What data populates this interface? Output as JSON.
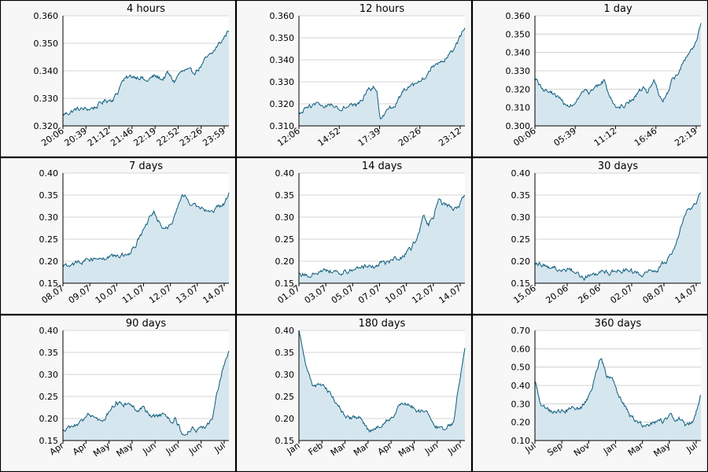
{
  "colors": {
    "line": "#0d5c7d",
    "fill": "#d6e6ee",
    "grid": "#c8c8c8",
    "panel_bg": "#f7f7f7",
    "plot_bg": "#ffffff",
    "border": "#000000"
  },
  "chart_data": [
    {
      "type": "area",
      "title": "4 hours",
      "ylim": [
        0.32,
        0.36
      ],
      "yticks": [
        "0.320",
        "0.330",
        "0.340",
        "0.350",
        "0.360"
      ],
      "xticks": [
        "20:06",
        "20:39",
        "21:12",
        "21:46",
        "22:19",
        "22:52",
        "23:26",
        "23:59"
      ],
      "grid": true,
      "key_points": [
        [
          0,
          0.324
        ],
        [
          0.08,
          0.326
        ],
        [
          0.15,
          0.326
        ],
        [
          0.2,
          0.327
        ],
        [
          0.25,
          0.329
        ],
        [
          0.3,
          0.33
        ],
        [
          0.33,
          0.332
        ],
        [
          0.35,
          0.336
        ],
        [
          0.38,
          0.337
        ],
        [
          0.42,
          0.338
        ],
        [
          0.47,
          0.338
        ],
        [
          0.5,
          0.336
        ],
        [
          0.55,
          0.338
        ],
        [
          0.6,
          0.337
        ],
        [
          0.63,
          0.339
        ],
        [
          0.67,
          0.336
        ],
        [
          0.7,
          0.339
        ],
        [
          0.74,
          0.34
        ],
        [
          0.78,
          0.339
        ],
        [
          0.82,
          0.341
        ],
        [
          0.86,
          0.344
        ],
        [
          0.9,
          0.346
        ],
        [
          0.93,
          0.349
        ],
        [
          0.96,
          0.351
        ],
        [
          1.0,
          0.355
        ]
      ]
    },
    {
      "type": "area",
      "title": "12 hours",
      "ylim": [
        0.31,
        0.36
      ],
      "yticks": [
        "0.310",
        "0.320",
        "0.330",
        "0.340",
        "0.350",
        "0.360"
      ],
      "xticks": [
        "12:06",
        "14:52",
        "17:39",
        "20:26",
        "23:12"
      ],
      "grid": true,
      "key_points": [
        [
          0,
          0.315
        ],
        [
          0.05,
          0.318
        ],
        [
          0.1,
          0.32
        ],
        [
          0.15,
          0.319
        ],
        [
          0.2,
          0.32
        ],
        [
          0.25,
          0.318
        ],
        [
          0.3,
          0.32
        ],
        [
          0.35,
          0.319
        ],
        [
          0.38,
          0.322
        ],
        [
          0.42,
          0.326
        ],
        [
          0.45,
          0.328
        ],
        [
          0.47,
          0.325
        ],
        [
          0.49,
          0.312
        ],
        [
          0.52,
          0.315
        ],
        [
          0.56,
          0.318
        ],
        [
          0.6,
          0.322
        ],
        [
          0.63,
          0.326
        ],
        [
          0.66,
          0.327
        ],
        [
          0.7,
          0.328
        ],
        [
          0.74,
          0.33
        ],
        [
          0.78,
          0.334
        ],
        [
          0.82,
          0.338
        ],
        [
          0.86,
          0.34
        ],
        [
          0.9,
          0.342
        ],
        [
          0.94,
          0.345
        ],
        [
          1.0,
          0.355
        ]
      ]
    },
    {
      "type": "area",
      "title": "1 day",
      "ylim": [
        0.3,
        0.36
      ],
      "yticks": [
        "0.300",
        "0.310",
        "0.320",
        "0.330",
        "0.340",
        "0.350",
        "0.360"
      ],
      "xticks": [
        "00:06",
        "05:39",
        "11:12",
        "16:46",
        "22:19"
      ],
      "grid": true,
      "key_points": [
        [
          0,
          0.326
        ],
        [
          0.05,
          0.32
        ],
        [
          0.1,
          0.318
        ],
        [
          0.15,
          0.315
        ],
        [
          0.2,
          0.31
        ],
        [
          0.25,
          0.314
        ],
        [
          0.3,
          0.318
        ],
        [
          0.35,
          0.318
        ],
        [
          0.38,
          0.322
        ],
        [
          0.42,
          0.325
        ],
        [
          0.45,
          0.315
        ],
        [
          0.5,
          0.31
        ],
        [
          0.55,
          0.312
        ],
        [
          0.6,
          0.316
        ],
        [
          0.65,
          0.32
        ],
        [
          0.68,
          0.318
        ],
        [
          0.7,
          0.322
        ],
        [
          0.72,
          0.325
        ],
        [
          0.74,
          0.32
        ],
        [
          0.77,
          0.312
        ],
        [
          0.8,
          0.318
        ],
        [
          0.83,
          0.325
        ],
        [
          0.86,
          0.328
        ],
        [
          0.89,
          0.333
        ],
        [
          0.92,
          0.338
        ],
        [
          0.95,
          0.342
        ],
        [
          0.98,
          0.348
        ],
        [
          1.0,
          0.355
        ]
      ]
    },
    {
      "type": "area",
      "title": "7 days",
      "ylim": [
        0.15,
        0.4
      ],
      "yticks": [
        "0.15",
        "0.20",
        "0.25",
        "0.30",
        "0.35",
        "0.40"
      ],
      "xticks": [
        "08.07",
        "09.07",
        "10.07",
        "11.07",
        "12.07",
        "13.07",
        "14.07"
      ],
      "grid": true,
      "key_points": [
        [
          0,
          0.188
        ],
        [
          0.06,
          0.19
        ],
        [
          0.1,
          0.198
        ],
        [
          0.15,
          0.205
        ],
        [
          0.2,
          0.206
        ],
        [
          0.26,
          0.208
        ],
        [
          0.32,
          0.212
        ],
        [
          0.37,
          0.215
        ],
        [
          0.41,
          0.222
        ],
        [
          0.44,
          0.24
        ],
        [
          0.47,
          0.26
        ],
        [
          0.5,
          0.28
        ],
        [
          0.53,
          0.3
        ],
        [
          0.55,
          0.31
        ],
        [
          0.57,
          0.29
        ],
        [
          0.6,
          0.28
        ],
        [
          0.63,
          0.28
        ],
        [
          0.66,
          0.29
        ],
        [
          0.7,
          0.33
        ],
        [
          0.72,
          0.35
        ],
        [
          0.75,
          0.34
        ],
        [
          0.78,
          0.33
        ],
        [
          0.82,
          0.325
        ],
        [
          0.86,
          0.32
        ],
        [
          0.9,
          0.318
        ],
        [
          0.94,
          0.322
        ],
        [
          0.97,
          0.33
        ],
        [
          1.0,
          0.352
        ]
      ]
    },
    {
      "type": "area",
      "title": "14 days",
      "ylim": [
        0.15,
        0.4
      ],
      "yticks": [
        "0.15",
        "0.20",
        "0.25",
        "0.30",
        "0.35",
        "0.40"
      ],
      "xticks": [
        "01.07",
        "03.07",
        "05.07",
        "07.07",
        "10.07",
        "12.07",
        "14.07"
      ],
      "grid": true,
      "key_points": [
        [
          0,
          0.175
        ],
        [
          0.05,
          0.168
        ],
        [
          0.1,
          0.175
        ],
        [
          0.15,
          0.18
        ],
        [
          0.2,
          0.178
        ],
        [
          0.26,
          0.175
        ],
        [
          0.32,
          0.182
        ],
        [
          0.38,
          0.188
        ],
        [
          0.44,
          0.19
        ],
        [
          0.5,
          0.195
        ],
        [
          0.56,
          0.2
        ],
        [
          0.62,
          0.21
        ],
        [
          0.68,
          0.23
        ],
        [
          0.72,
          0.26
        ],
        [
          0.75,
          0.3
        ],
        [
          0.78,
          0.28
        ],
        [
          0.81,
          0.3
        ],
        [
          0.84,
          0.34
        ],
        [
          0.87,
          0.33
        ],
        [
          0.9,
          0.325
        ],
        [
          0.93,
          0.32
        ],
        [
          0.96,
          0.322
        ],
        [
          1.0,
          0.352
        ]
      ]
    },
    {
      "type": "area",
      "title": "30 days",
      "ylim": [
        0.15,
        0.4
      ],
      "yticks": [
        "0.15",
        "0.20",
        "0.25",
        "0.30",
        "0.35",
        "0.40"
      ],
      "xticks": [
        "15.06",
        "20.06",
        "26.06",
        "02.07",
        "08.07",
        "14.07"
      ],
      "grid": true,
      "key_points": [
        [
          0,
          0.2
        ],
        [
          0.05,
          0.19
        ],
        [
          0.1,
          0.185
        ],
        [
          0.15,
          0.18
        ],
        [
          0.2,
          0.18
        ],
        [
          0.25,
          0.175
        ],
        [
          0.3,
          0.162
        ],
        [
          0.35,
          0.172
        ],
        [
          0.4,
          0.178
        ],
        [
          0.45,
          0.175
        ],
        [
          0.5,
          0.178
        ],
        [
          0.55,
          0.178
        ],
        [
          0.6,
          0.175
        ],
        [
          0.65,
          0.168
        ],
        [
          0.7,
          0.178
        ],
        [
          0.75,
          0.185
        ],
        [
          0.79,
          0.2
        ],
        [
          0.83,
          0.22
        ],
        [
          0.87,
          0.27
        ],
        [
          0.9,
          0.3
        ],
        [
          0.93,
          0.32
        ],
        [
          0.96,
          0.33
        ],
        [
          1.0,
          0.352
        ]
      ]
    },
    {
      "type": "area",
      "title": "90 days",
      "ylim": [
        0.15,
        0.4
      ],
      "yticks": [
        "0.15",
        "0.20",
        "0.25",
        "0.30",
        "0.35",
        "0.40"
      ],
      "xticks": [
        "Apr",
        "Apr",
        "May",
        "May",
        "Jun",
        "Jun",
        "Jun",
        "Jul"
      ],
      "grid": true,
      "key_points": [
        [
          0,
          0.168
        ],
        [
          0.05,
          0.18
        ],
        [
          0.1,
          0.19
        ],
        [
          0.15,
          0.205
        ],
        [
          0.2,
          0.2
        ],
        [
          0.24,
          0.195
        ],
        [
          0.28,
          0.215
        ],
        [
          0.32,
          0.24
        ],
        [
          0.36,
          0.23
        ],
        [
          0.4,
          0.235
        ],
        [
          0.44,
          0.22
        ],
        [
          0.48,
          0.225
        ],
        [
          0.52,
          0.21
        ],
        [
          0.56,
          0.205
        ],
        [
          0.6,
          0.21
        ],
        [
          0.64,
          0.195
        ],
        [
          0.68,
          0.2
        ],
        [
          0.72,
          0.165
        ],
        [
          0.76,
          0.175
        ],
        [
          0.8,
          0.175
        ],
        [
          0.84,
          0.175
        ],
        [
          0.87,
          0.18
        ],
        [
          0.9,
          0.2
        ],
        [
          0.93,
          0.26
        ],
        [
          0.96,
          0.31
        ],
        [
          1.0,
          0.35
        ]
      ]
    },
    {
      "type": "area",
      "title": "180 days",
      "ylim": [
        0.15,
        0.4
      ],
      "yticks": [
        "0.15",
        "0.20",
        "0.25",
        "0.30",
        "0.35",
        "0.40"
      ],
      "xticks": [
        "Jan",
        "Feb",
        "Mar",
        "Mar",
        "Apr",
        "May",
        "Jun",
        "Jun"
      ],
      "grid": true,
      "key_points": [
        [
          0,
          0.4
        ],
        [
          0.03,
          0.34
        ],
        [
          0.06,
          0.3
        ],
        [
          0.09,
          0.27
        ],
        [
          0.13,
          0.28
        ],
        [
          0.18,
          0.26
        ],
        [
          0.22,
          0.24
        ],
        [
          0.27,
          0.21
        ],
        [
          0.32,
          0.2
        ],
        [
          0.37,
          0.2
        ],
        [
          0.42,
          0.17
        ],
        [
          0.47,
          0.18
        ],
        [
          0.52,
          0.195
        ],
        [
          0.57,
          0.2
        ],
        [
          0.62,
          0.235
        ],
        [
          0.67,
          0.23
        ],
        [
          0.72,
          0.22
        ],
        [
          0.77,
          0.215
        ],
        [
          0.82,
          0.185
        ],
        [
          0.87,
          0.17
        ],
        [
          0.9,
          0.18
        ],
        [
          0.93,
          0.19
        ],
        [
          0.96,
          0.27
        ],
        [
          1.0,
          0.35
        ]
      ]
    },
    {
      "type": "area",
      "title": "360 days",
      "ylim": [
        0.1,
        0.7
      ],
      "yticks": [
        "0.10",
        "0.20",
        "0.30",
        "0.40",
        "0.50",
        "0.60",
        "0.70"
      ],
      "xticks": [
        "Jul",
        "Sep",
        "Nov",
        "Jan",
        "Mar",
        "May",
        "Jul"
      ],
      "grid": true,
      "key_points": [
        [
          0,
          0.42
        ],
        [
          0.04,
          0.28
        ],
        [
          0.08,
          0.26
        ],
        [
          0.13,
          0.26
        ],
        [
          0.18,
          0.27
        ],
        [
          0.23,
          0.27
        ],
        [
          0.28,
          0.28
        ],
        [
          0.33,
          0.35
        ],
        [
          0.37,
          0.48
        ],
        [
          0.4,
          0.56
        ],
        [
          0.43,
          0.46
        ],
        [
          0.47,
          0.42
        ],
        [
          0.52,
          0.32
        ],
        [
          0.57,
          0.24
        ],
        [
          0.62,
          0.2
        ],
        [
          0.67,
          0.18
        ],
        [
          0.72,
          0.2
        ],
        [
          0.77,
          0.2
        ],
        [
          0.82,
          0.23
        ],
        [
          0.87,
          0.22
        ],
        [
          0.91,
          0.18
        ],
        [
          0.95,
          0.2
        ],
        [
          1.0,
          0.35
        ]
      ]
    }
  ]
}
